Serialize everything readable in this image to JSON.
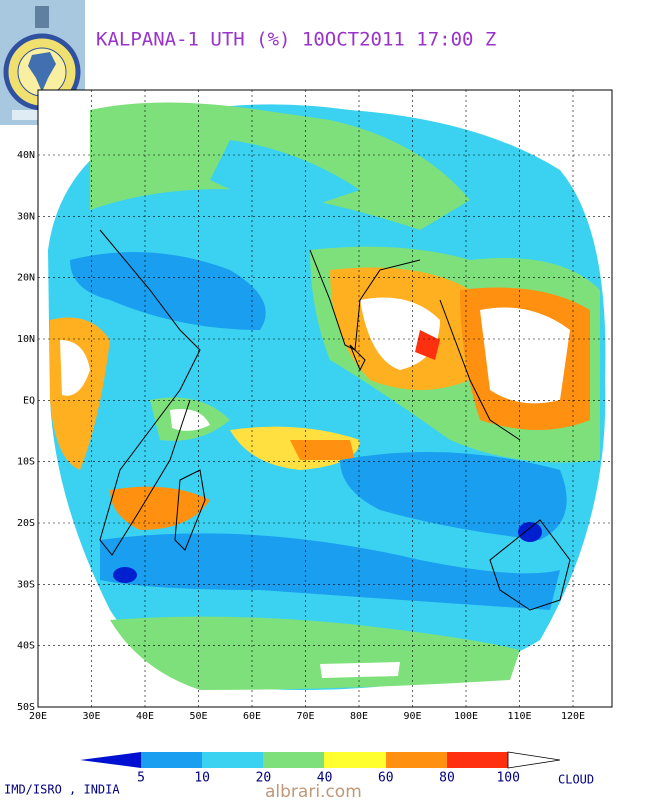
{
  "header": {
    "title": "KALPANA-1 UTH (%) 10OCT2011 17:00 Z"
  },
  "map": {
    "lat_labels": [
      "40N",
      "30N",
      "20N",
      "10N",
      "EQ",
      "10S",
      "20S",
      "30S",
      "40S",
      "50S"
    ],
    "lon_labels": [
      "20E",
      "30E",
      "40E",
      "50E",
      "60E",
      "70E",
      "80E",
      "90E",
      "100E",
      "110E",
      "120E"
    ]
  },
  "legend": {
    "labels": [
      "5",
      "10",
      "20",
      "40",
      "60",
      "80",
      "100"
    ],
    "end_label": "CLOUD"
  },
  "footer": {
    "credit": "IMD/ISRO , INDIA",
    "watermark": "albrari.com"
  }
}
